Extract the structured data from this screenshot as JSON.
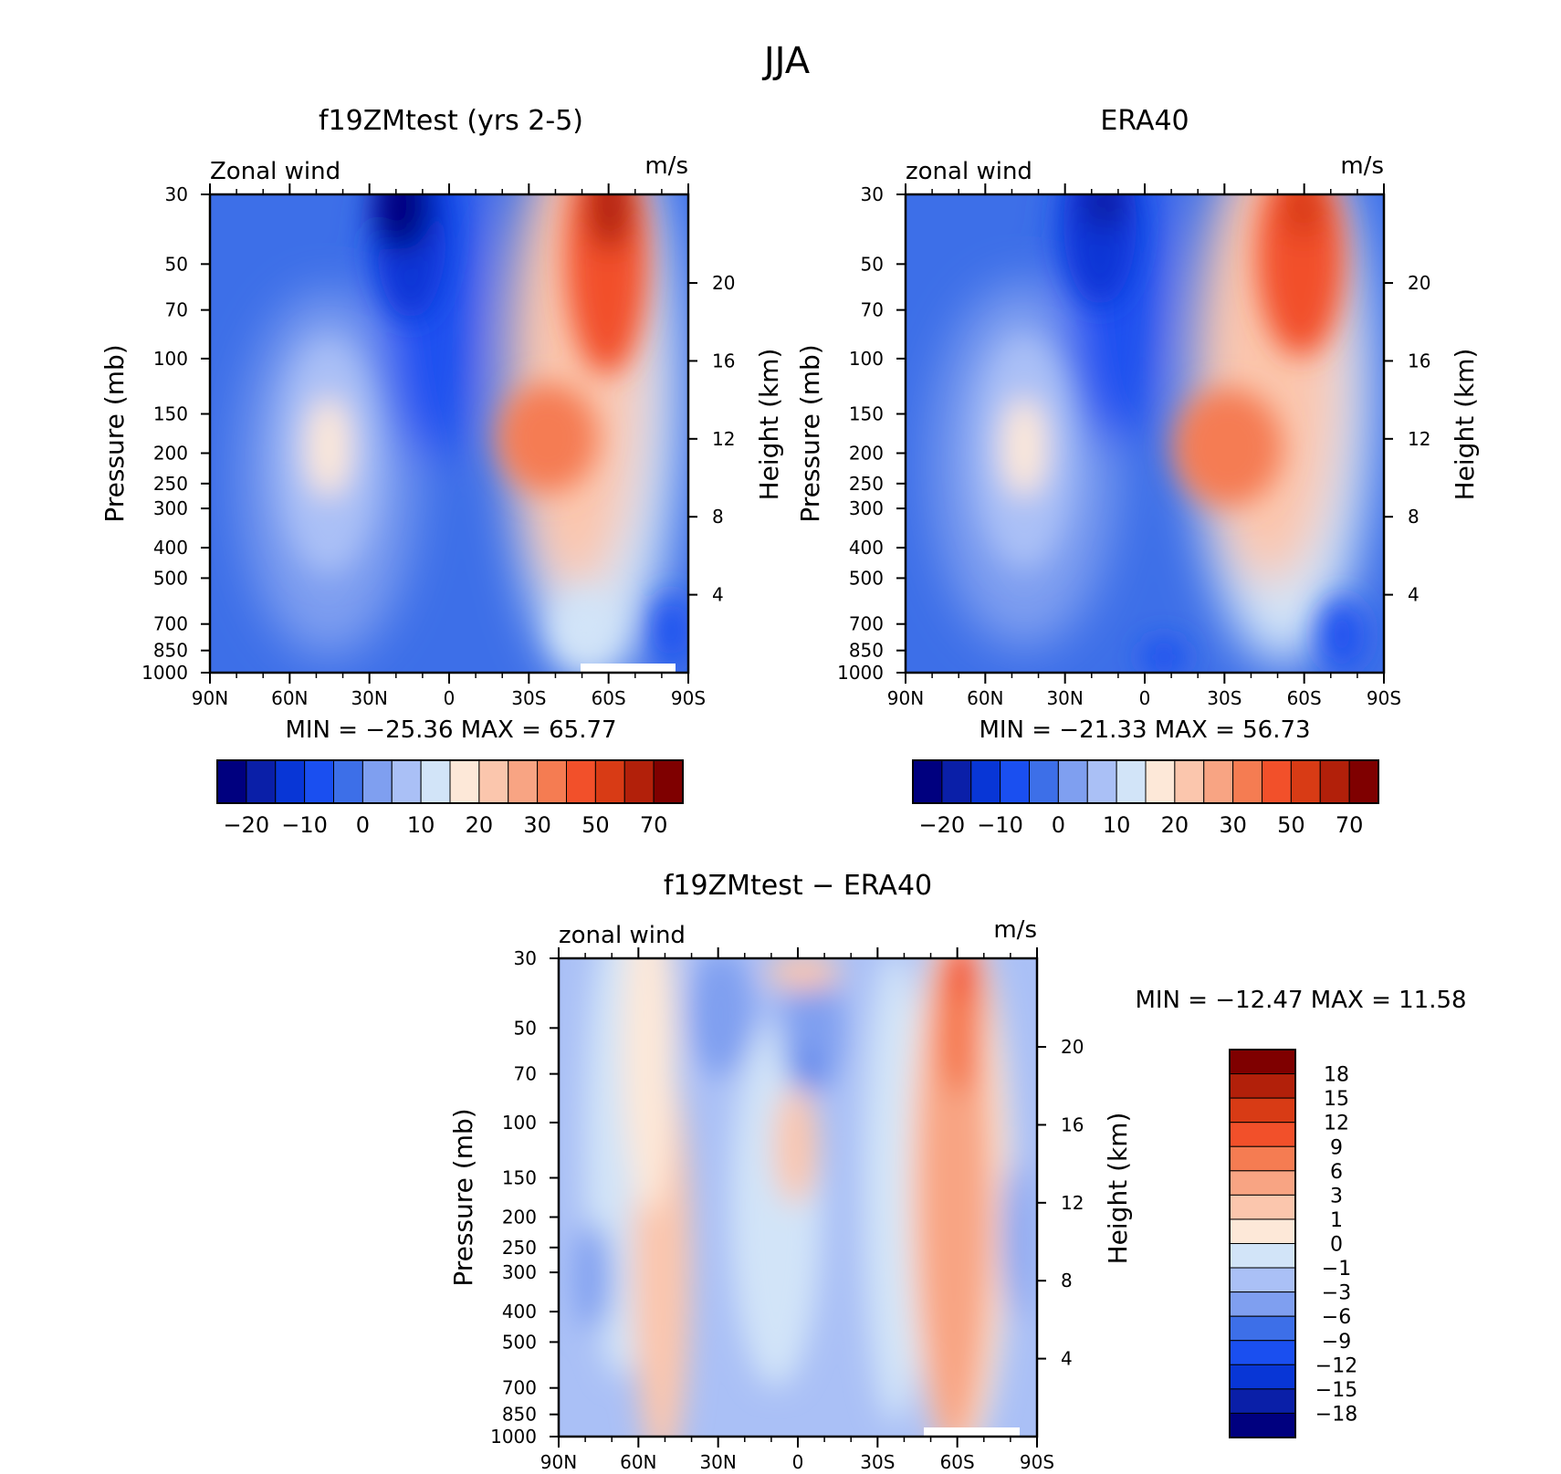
{
  "page_title": "JJA",
  "colors": {
    "main_scale": [
      "#00007f",
      "#0a1fa8",
      "#0836d6",
      "#1a4ff0",
      "#3d6fe8",
      "#7f9ff0",
      "#aac0f6",
      "#d2e4f8",
      "#fde8d8",
      "#fbc6ad",
      "#f8a483",
      "#f57c52",
      "#f2502a",
      "#d83b15",
      "#b2200a",
      "#7f0000"
    ],
    "diff_scale": [
      "#00007f",
      "#0a1fa8",
      "#0836d6",
      "#1a4ff0",
      "#3d6fe8",
      "#7f9ff0",
      "#aac0f6",
      "#d2e4f8",
      "#fde8d8",
      "#fbc6ad",
      "#f8a483",
      "#f57c52",
      "#f2502a",
      "#d83b15",
      "#b2200a",
      "#7f0000"
    ]
  },
  "chart_data": [
    {
      "type": "heatmap",
      "title": "f19ZMtest (yrs 2-5)",
      "subtitle_left": "Zonal wind",
      "subtitle_right": "m/s",
      "ylabel": "Pressure (mb)",
      "ylabel_right": "Height (km)",
      "x_tick_labels": [
        "90N",
        "60N",
        "30N",
        "0",
        "30S",
        "60S",
        "90S"
      ],
      "y_tick_labels": [
        "30",
        "50",
        "70",
        "100",
        "150",
        "200",
        "250",
        "300",
        "400",
        "500",
        "700",
        "850",
        "1000"
      ],
      "height_tick_labels": [
        "20",
        "16",
        "12",
        "8",
        "4"
      ],
      "stats": "MIN = −25.36   MAX =   65.77",
      "min": -25.36,
      "max": 65.77,
      "colorbar_labels": [
        "−20",
        "−10",
        "0",
        "10",
        "20",
        "30",
        "50",
        "70"
      ],
      "jets": [
        {
          "lat": -60,
          "p": 30,
          "value": 65
        },
        {
          "lat": -27,
          "p": 200,
          "value": 45
        },
        {
          "lat": 45,
          "p": 200,
          "value": 22
        },
        {
          "lat": 20,
          "p": 30,
          "value": -25
        }
      ]
    },
    {
      "type": "heatmap",
      "title": "ERA40",
      "subtitle_left": "zonal wind",
      "subtitle_right": "m/s",
      "ylabel": "Pressure (mb)",
      "ylabel_right": "Height (km)",
      "x_tick_labels": [
        "90N",
        "60N",
        "30N",
        "0",
        "30S",
        "60S",
        "90S"
      ],
      "y_tick_labels": [
        "30",
        "50",
        "70",
        "100",
        "150",
        "200",
        "250",
        "300",
        "400",
        "500",
        "700",
        "850",
        "1000"
      ],
      "height_tick_labels": [
        "20",
        "16",
        "12",
        "8",
        "4"
      ],
      "stats": "MIN = −21.33   MAX =   56.73",
      "min": -21.33,
      "max": 56.73,
      "colorbar_labels": [
        "−20",
        "−10",
        "0",
        "10",
        "20",
        "30",
        "50",
        "70"
      ],
      "jets": [
        {
          "lat": -60,
          "p": 30,
          "value": 55
        },
        {
          "lat": -30,
          "p": 200,
          "value": 42
        },
        {
          "lat": 45,
          "p": 200,
          "value": 21
        },
        {
          "lat": 15,
          "p": 30,
          "value": -21
        }
      ]
    },
    {
      "type": "heatmap",
      "title": "f19ZMtest − ERA40",
      "subtitle_left": "zonal wind",
      "subtitle_right": "m/s",
      "ylabel": "Pressure (mb)",
      "ylabel_right": "Height (km)",
      "x_tick_labels": [
        "90N",
        "60N",
        "30N",
        "0",
        "30S",
        "60S",
        "90S"
      ],
      "y_tick_labels": [
        "30",
        "50",
        "70",
        "100",
        "150",
        "200",
        "250",
        "300",
        "400",
        "500",
        "700",
        "850",
        "1000"
      ],
      "height_tick_labels": [
        "20",
        "16",
        "12",
        "8",
        "4"
      ],
      "stats": "MIN = −12.47   MAX =   11.58",
      "min": -12.47,
      "max": 11.58,
      "colorbar_labels": [
        "18",
        "15",
        "12",
        "9",
        "6",
        "3",
        "1",
        "0",
        "−1",
        "−3",
        "−6",
        "−9",
        "−12",
        "−15",
        "−18"
      ]
    }
  ]
}
